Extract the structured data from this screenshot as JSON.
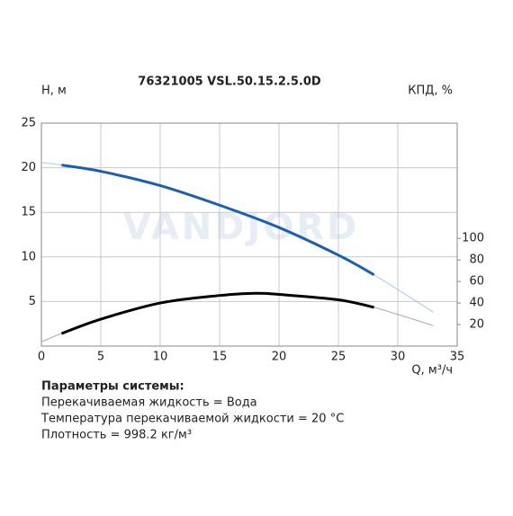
{
  "chart_data": {
    "type": "line",
    "title": "76321005 VSL.50.15.2.5.0D",
    "ylabel": "H, м",
    "y2label": "КПД, %",
    "xlabel": "Q, м³/ч",
    "watermark": "VANDJORD",
    "xlim": [
      0,
      35
    ],
    "xticks": [
      0,
      5,
      10,
      15,
      20,
      25,
      30,
      35
    ],
    "ylim": [
      0,
      25
    ],
    "yticks": [
      5,
      10,
      15,
      20,
      25
    ],
    "y2lim": [
      0,
      207
    ],
    "y2ticks": [
      20,
      40,
      60,
      80,
      100
    ],
    "grid": true,
    "series": [
      {
        "color": "#a8c8ec",
        "width": 1,
        "x": [
          0,
          1.7,
          5,
          10,
          15,
          20,
          25,
          28,
          33
        ],
        "values": [
          20.6,
          20.3,
          19.6,
          18,
          15.8,
          13.3,
          10.2,
          8,
          3.8
        ]
      },
      {
        "color": "#1a5fb4",
        "width": 3,
        "x": [
          1.7,
          5,
          10,
          15,
          20,
          25,
          28
        ],
        "values": [
          20.3,
          19.6,
          18,
          15.8,
          13.3,
          10.2,
          8
        ]
      },
      {
        "color": "#aaaaaa",
        "width": 1,
        "axis": "y2",
        "x": [
          0,
          1.7,
          5,
          10,
          15,
          18,
          20,
          25,
          28,
          33
        ],
        "values": [
          4,
          11.7,
          25,
          40,
          47,
          49,
          48,
          43,
          36,
          19
        ]
      },
      {
        "color": "#000000",
        "width": 3,
        "axis": "y2",
        "x": [
          1.7,
          5,
          10,
          15,
          18,
          20,
          25,
          28
        ],
        "values": [
          11.7,
          25,
          40,
          47,
          49,
          48,
          43,
          36
        ]
      }
    ]
  },
  "info": {
    "heading": "Параметры системы:",
    "lines": [
      "Перекачиваемая жидкость = Вода",
      "Температура перекачиваемой жидкости = 20 °C",
      "Плотность = 998.2 кг/м³"
    ]
  }
}
